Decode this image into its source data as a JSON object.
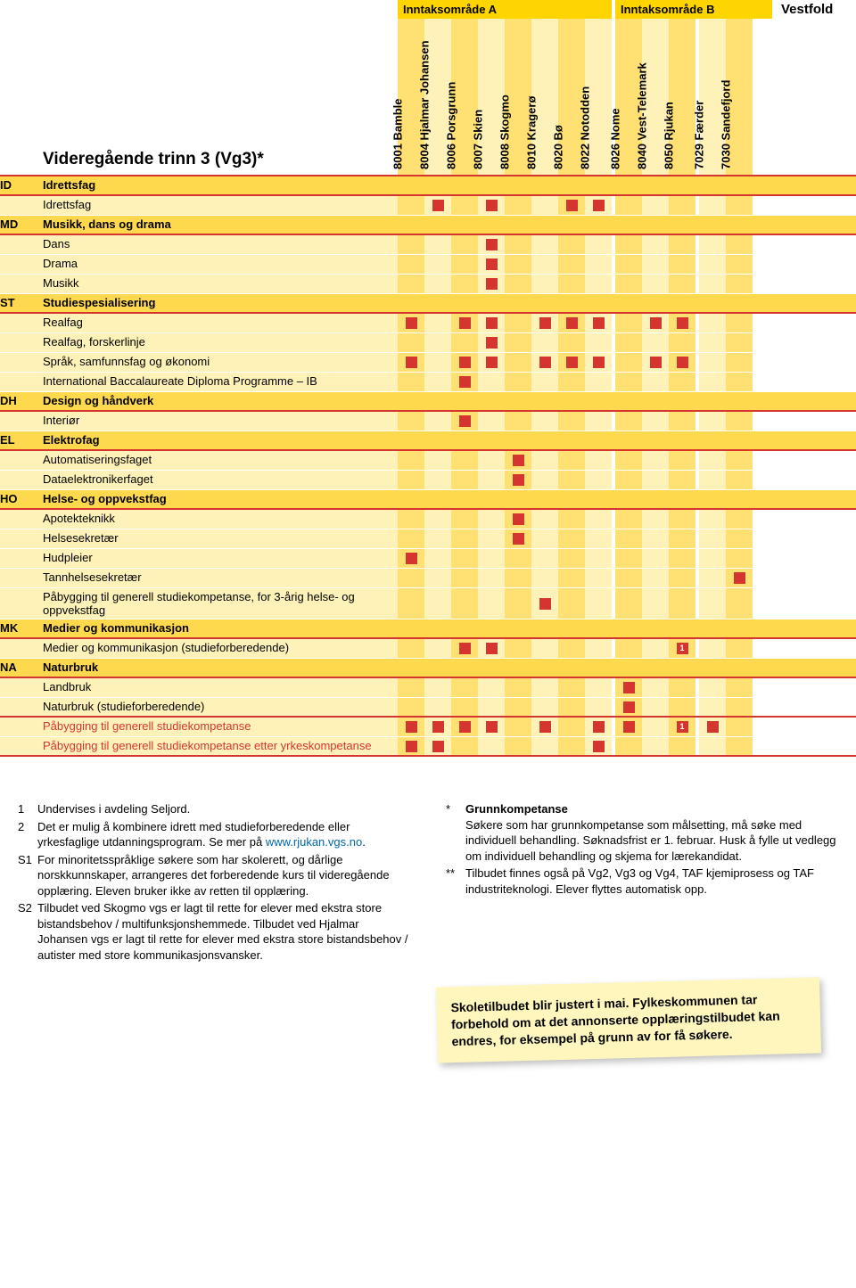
{
  "header": {
    "area_a": "Inntaksområde A",
    "area_b": "Inntaksområde B",
    "vestfold": "Vestfold",
    "title": "Videregående trinn 3 (Vg3)*"
  },
  "columns": [
    {
      "code": "8001",
      "name": "Bamble"
    },
    {
      "code": "8004",
      "name": "Hjalmar Johansen"
    },
    {
      "code": "8006",
      "name": "Porsgrunn"
    },
    {
      "code": "8007",
      "name": "Skien"
    },
    {
      "code": "8008",
      "name": "Skogmo"
    },
    {
      "code": "8010",
      "name": "Kragerø"
    },
    {
      "code": "8020",
      "name": "Bø"
    },
    {
      "code": "8022",
      "name": "Notodden"
    },
    {
      "code": "8026",
      "name": "Nome"
    },
    {
      "code": "8040",
      "name": "Vest-Telemark"
    },
    {
      "code": "8050",
      "name": "Rjukan"
    },
    {
      "code": "7029",
      "name": "Færder"
    },
    {
      "code": "7030",
      "name": "Sandefjord"
    }
  ],
  "rows": [
    {
      "type": "section",
      "code": "ID",
      "label": "Idrettsfag"
    },
    {
      "type": "item",
      "label": "Idrettsfag",
      "marks": [
        1,
        3,
        6,
        7
      ]
    },
    {
      "type": "section",
      "code": "MD",
      "label": "Musikk, dans og drama"
    },
    {
      "type": "item",
      "label": "Dans",
      "marks": [
        3
      ]
    },
    {
      "type": "item",
      "label": "Drama",
      "marks": [
        3
      ]
    },
    {
      "type": "item",
      "label": "Musikk",
      "marks": [
        3
      ]
    },
    {
      "type": "section",
      "code": "ST",
      "label": "Studiespesialisering"
    },
    {
      "type": "item",
      "label": "Realfag",
      "marks": [
        0,
        2,
        3,
        5,
        6,
        7,
        9,
        10
      ]
    },
    {
      "type": "item",
      "label": "Realfag, forskerlinje",
      "marks": [
        3
      ]
    },
    {
      "type": "item",
      "label": "Språk, samfunnsfag og økonomi",
      "marks": [
        0,
        2,
        3,
        5,
        6,
        7,
        9,
        10
      ]
    },
    {
      "type": "item",
      "label": "International Baccalaureate Diploma Programme – IB",
      "marks": [
        2
      ]
    },
    {
      "type": "section",
      "code": "DH",
      "label": "Design og håndverk"
    },
    {
      "type": "item",
      "label": "Interiør",
      "marks": [
        2
      ]
    },
    {
      "type": "section",
      "code": "EL",
      "label": "Elektrofag"
    },
    {
      "type": "item",
      "label": "Automatiseringsfaget",
      "marks": [
        4
      ]
    },
    {
      "type": "item",
      "label": "Dataelektronikerfaget",
      "marks": [
        4
      ]
    },
    {
      "type": "section",
      "code": "HO",
      "label": "Helse- og oppvekstfag"
    },
    {
      "type": "item",
      "label": "Apotekteknikk",
      "marks": [
        4
      ]
    },
    {
      "type": "item",
      "label": "Helsesekretær",
      "marks": [
        4
      ]
    },
    {
      "type": "item",
      "label": "Hudpleier",
      "marks": [
        0
      ]
    },
    {
      "type": "item",
      "label": "Tannhelsesekretær",
      "marks": [
        12
      ]
    },
    {
      "type": "item",
      "label": "Påbygging til generell studiekompetanse, for 3-årig helse- og oppvekstfag",
      "marks": [
        5
      ]
    },
    {
      "type": "section",
      "code": "MK",
      "label": "Medier og kommunikasjon"
    },
    {
      "type": "item",
      "label": "Medier og kommunikasjon (studieforberedende)",
      "marks": [
        2,
        3
      ],
      "numbered": {
        "10": "1"
      }
    },
    {
      "type": "section",
      "code": "NA",
      "label": "Naturbruk"
    },
    {
      "type": "item",
      "label": "Landbruk",
      "marks": [
        8
      ]
    },
    {
      "type": "item",
      "label": "Naturbruk (studieforberedende)",
      "marks": [
        8
      ],
      "last_before_hl": true
    },
    {
      "type": "item",
      "label": "Påbygging til generell studiekompetanse",
      "hl": true,
      "marks": [
        0,
        1,
        2,
        3,
        5,
        7,
        8,
        11
      ],
      "numbered": {
        "10": "1"
      }
    },
    {
      "type": "item",
      "label": "Påbygging til generell studiekompetanse etter yrkeskompetanse",
      "hl": true,
      "marks": [
        0,
        1,
        7
      ],
      "last": true
    }
  ],
  "colGroups": {
    "a_end": 7,
    "b_end": 10
  },
  "footnotes_left": [
    {
      "key": "1",
      "text": "Undervises i avdeling Seljord."
    },
    {
      "key": "2",
      "text": "Det er mulig å kombinere idrett med studieforberedende eller yrkesfaglige utdanningsprogram. Se mer på ",
      "link": "www.rjukan.vgs.no",
      "after": "."
    },
    {
      "key": "S1",
      "text": "For minoritetsspråklige søkere som har skolerett, og dårlige norskkunnskaper, arrangeres det forberedende kurs til videregående opplæring. Eleven bruker ikke av retten til opplæring."
    },
    {
      "key": "S2",
      "text": "Tilbudet ved Skogmo vgs er lagt til rette for elever med ekstra store bistandsbehov / multifunksjonshemmede. Tilbudet ved Hjalmar Johansen vgs er lagt til rette for elever med ekstra store bistandsbehov / autister med store kommunikasjonsvansker."
    }
  ],
  "footnotes_right": [
    {
      "key": "*",
      "bold": "Grunnkompetanse",
      "text": "Søkere som har grunnkompetanse som målsetting, må søke med individuell behandling. Søknadsfrist er 1. februar. Husk å fylle ut vedlegg om individuell behandling og skjema for lærekandidat."
    },
    {
      "key": "**",
      "text": "Tilbudet finnes også på Vg2, Vg3 og Vg4, TAF kjemiprosess og TAF industriteknologi. Elever flyttes automatisk opp."
    }
  ],
  "sticky": "Skoletilbudet blir justert i mai. Fylkeskommunen tar forbehold om at det annonserte opplæringstilbudet kan endres, for eksempel på grunn av for få søkere.",
  "style": {
    "mark_color": "#d4362f",
    "section_bg": "#ffd94d",
    "dark_col": "#ffe173",
    "light_col": "#fff2b8",
    "yellow_header": "#ffd500"
  }
}
